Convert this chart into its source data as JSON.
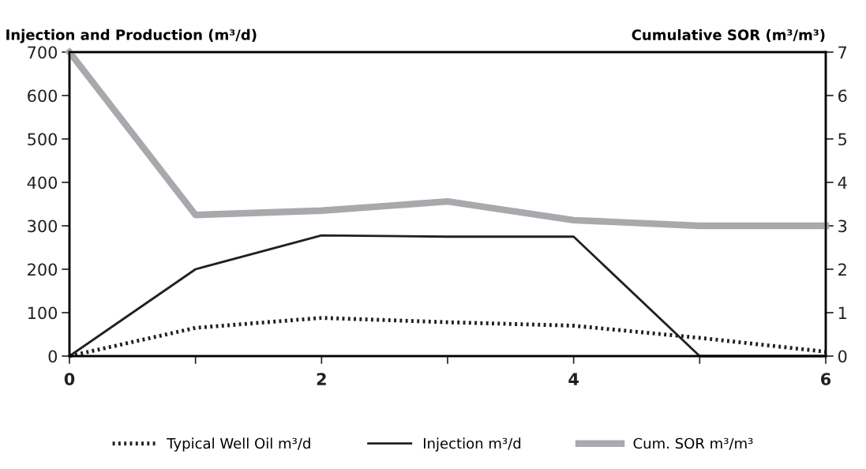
{
  "chart_data": {
    "type": "line",
    "ylabel": "Injection and Production (m³/d)",
    "y2label": "Cumulative SOR (m³/m³)",
    "x": [
      0,
      1,
      2,
      3,
      4,
      5,
      6
    ],
    "xlim": [
      0,
      6
    ],
    "xticks": [
      0,
      {
        "value": 1,
        "label": null
      },
      2,
      {
        "value": 3,
        "label": null
      },
      4,
      {
        "value": 5,
        "label": null
      },
      6
    ],
    "ylim": [
      0,
      700
    ],
    "yticks": [
      0,
      100,
      200,
      300,
      400,
      500,
      600,
      700
    ],
    "y2lim": [
      0,
      7
    ],
    "y2ticks": [
      0,
      1,
      2,
      3,
      4,
      5,
      6,
      7
    ],
    "grid": false,
    "legend": "bottom",
    "marker": "none",
    "series": [
      {
        "name": "Typical Well Oil m³/d",
        "color": "#231f20",
        "line_style": "dotted",
        "values": [
          0,
          65,
          88,
          78,
          70,
          42,
          10
        ]
      },
      {
        "name": "Injection m³/d",
        "color": "#231f20",
        "line_style": "solid",
        "values": [
          0,
          200,
          278,
          275,
          275,
          0,
          0
        ]
      },
      {
        "name": "Cum. SOR m³/m³",
        "color": "#a7a9ac",
        "line_style": "solid",
        "axis": "y2",
        "values": [
          7,
          3.25,
          3.35,
          3.56,
          3.13,
          3.0,
          3.0
        ]
      }
    ]
  }
}
